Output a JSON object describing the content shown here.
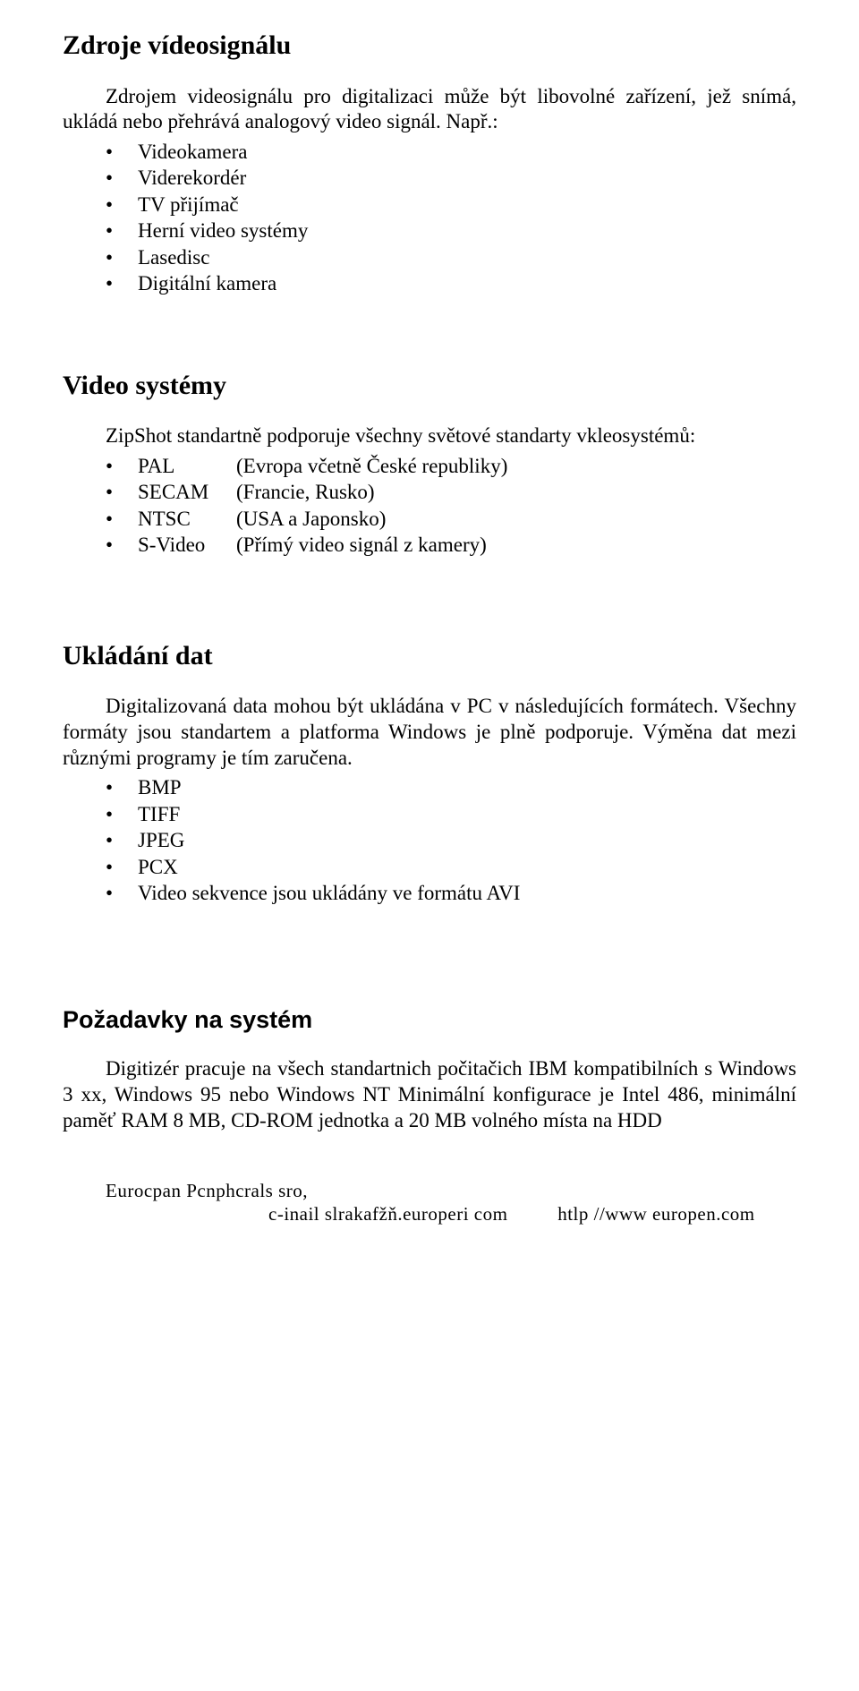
{
  "section1": {
    "title": "Zdroje vídeosignálu",
    "para": "Zdrojem videosignálu pro digitalizaci může být libovolné zařízení, jež snímá, ukládá nebo přehrává analogový video signál. Např.:",
    "items": [
      "Videokamera",
      "Viderekordér",
      "TV přijímač",
      "Herní video systémy",
      "Lasedisc",
      "Digitální kamera"
    ]
  },
  "section2": {
    "title": "Video systémy",
    "para": "ZipShot standartně podporuje všechny světové standarty vkleosystémů:",
    "items": [
      {
        "label": "PAL",
        "value": "(Evropa včetně České republiky)"
      },
      {
        "label": "SECAM",
        "value": "(Francie, Rusko)"
      },
      {
        "label": "NTSC",
        "value": "(USA a Japonsko)"
      },
      {
        "label": "S-Video",
        "value": "(Přímý video signál z kamery)"
      }
    ]
  },
  "section3": {
    "title": "Ukládání dat",
    "para": "Digitalizovaná data mohou být ukládána v PC v následujících formátech. Všechny formáty jsou standartem a platforma Windows je plně podporuje. Výměna dat mezi různými programy je tím zaručena.",
    "items": [
      "BMP",
      "TIFF",
      "JPEG",
      "PCX",
      "Video sekvence jsou ukládány ve formátu AVI"
    ]
  },
  "section4": {
    "title": "Požadavky na systém",
    "para": "Digitizér pracuje na všech standartnich počitačich IBM kompatibilních s Windows 3 xx, Windows 95 nebo Windows NT Minimální konfigurace je Intel 486, minimální paměť RAM 8 MB, CD-ROM jednotka a 20 MB volného místa na HDD"
  },
  "footer": {
    "line1": "Eurocpan Pcnphcrals sro,",
    "line2_left": "c-inail slrakafžň.europeri com",
    "line2_right": "htlp //www europen.com"
  }
}
